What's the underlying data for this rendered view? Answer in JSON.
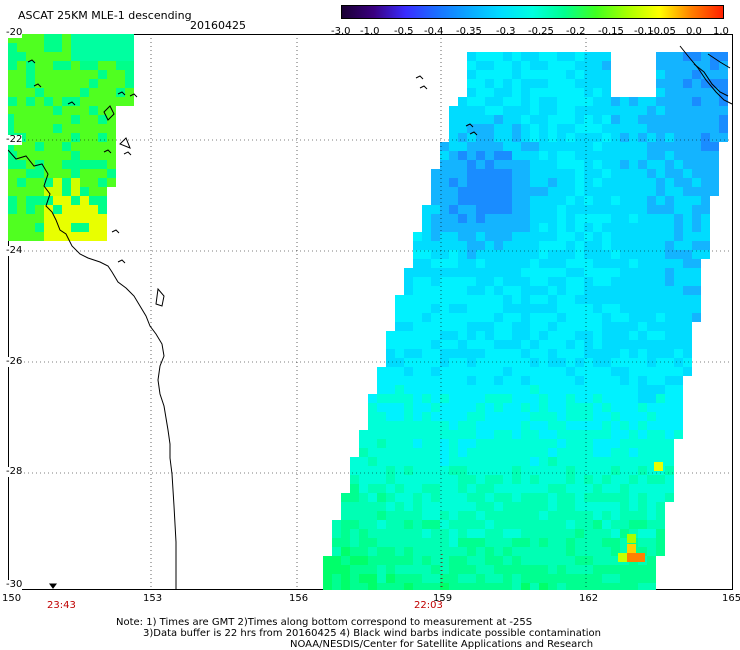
{
  "header": {
    "title": "ASCAT 25KM MLE-1 descending",
    "date": "20160425"
  },
  "colorbar": {
    "labels": [
      "-3.0",
      "-1.0",
      "-0.5",
      "-0.4",
      "-0.35",
      "-0.3",
      "-0.25",
      "-0.2",
      "-0.15",
      "-0.1",
      "-0.05",
      "0.0",
      "1.0"
    ],
    "colors": [
      "#1a0033",
      "#3a0080",
      "#3a2cff",
      "#1a70ff",
      "#0aa8ff",
      "#00ddff",
      "#00ffe0",
      "#00ff90",
      "#40ff20",
      "#a8ff00",
      "#ffff00",
      "#ff8000",
      "#ff2000"
    ]
  },
  "map": {
    "lat_labels": [
      "-20",
      "-22",
      "-24",
      "-26",
      "-28",
      "-30"
    ],
    "lon_labels": [
      "150",
      "153",
      "156",
      "159",
      "162",
      "165"
    ],
    "swath_times": [
      "23:43",
      "22:03"
    ]
  },
  "notes": {
    "line1": "Note: 1) Times are GMT 2)Times along bottom correspond to measurement at -25S",
    "line2": "3)Data buffer is 22 hrs from 20160425 4) Black wind barbs indicate possible contamination",
    "line3": "NOAA/NESDIS/Center for Satellite Applications and Research"
  }
}
